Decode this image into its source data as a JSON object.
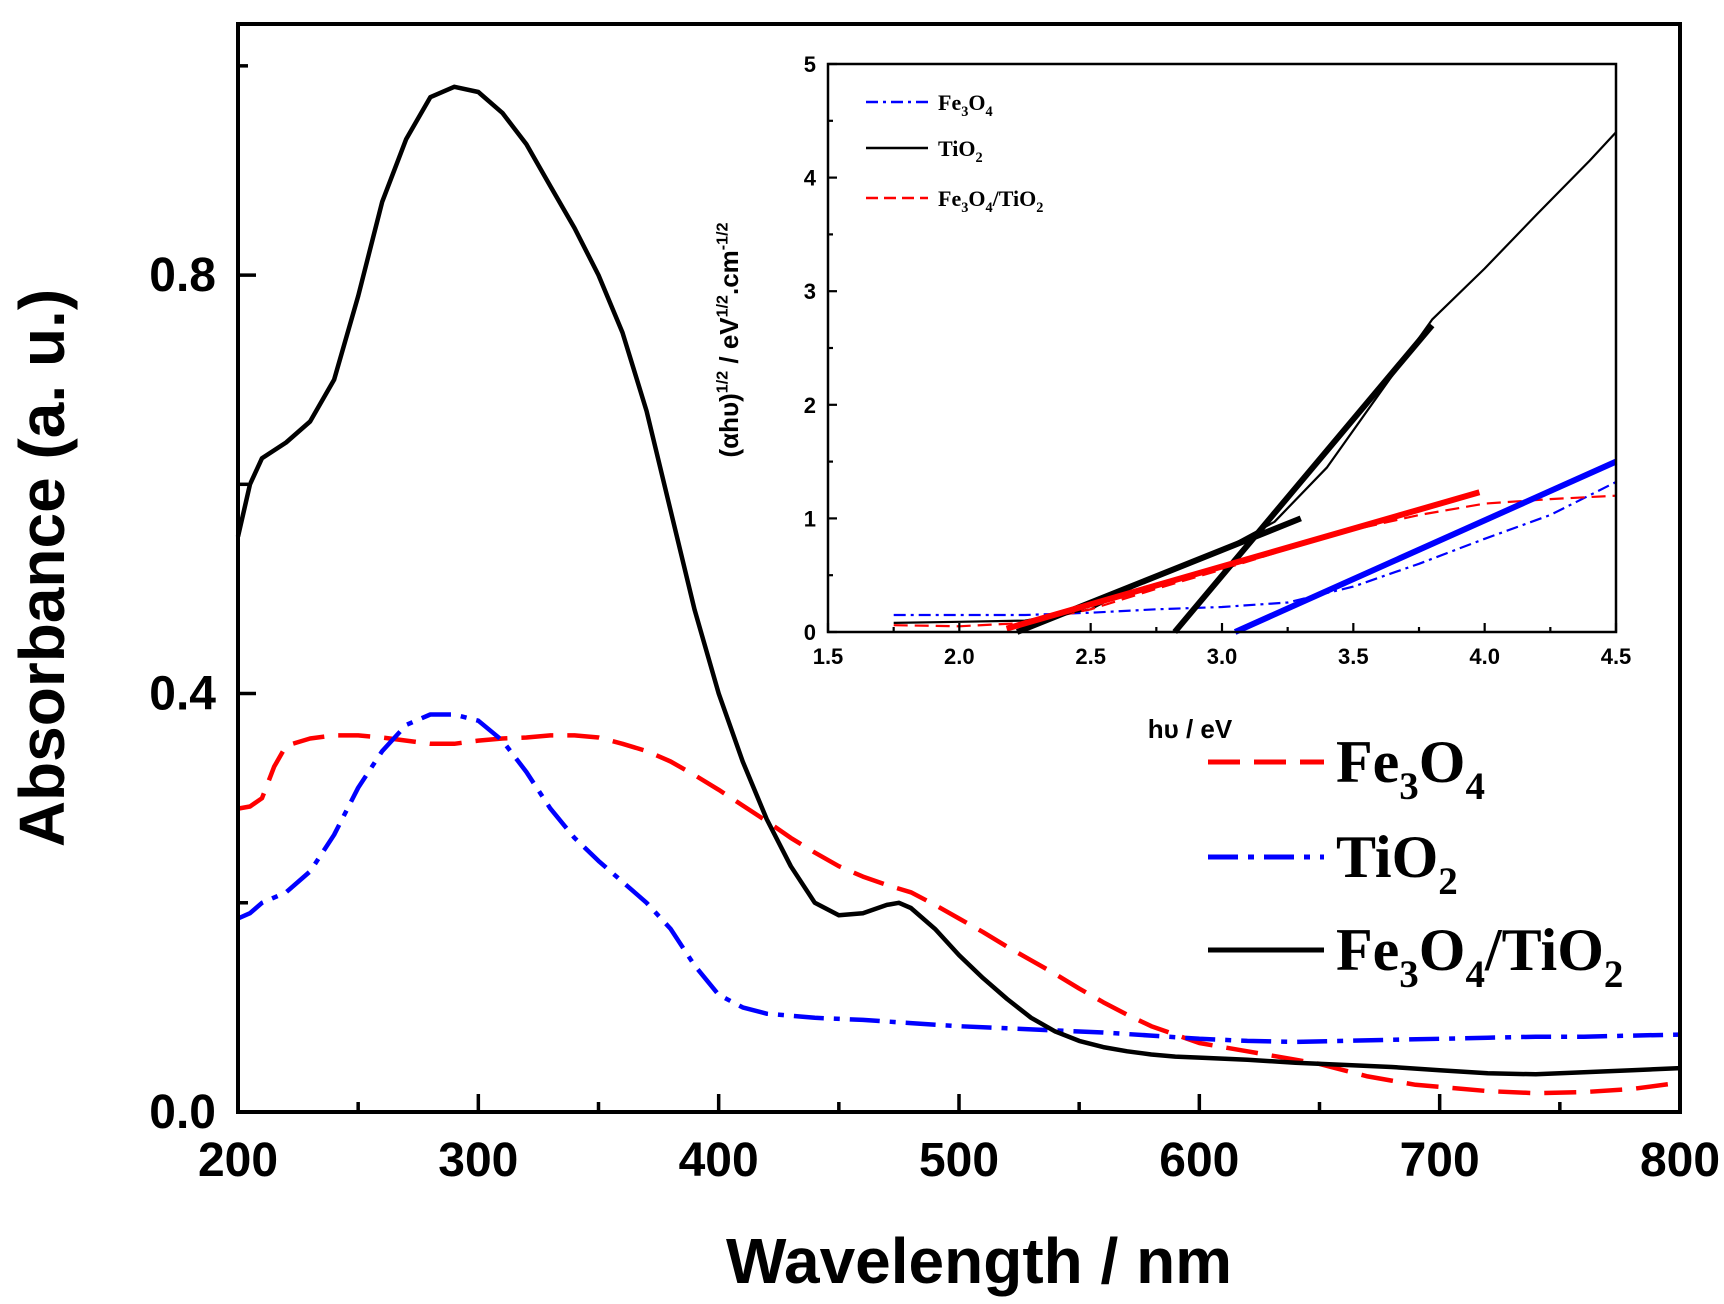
{
  "chart_data": [
    {
      "type": "line",
      "title": "",
      "xlabel": "Wavelength / nm",
      "ylabel": "Absorbance (a. u.)",
      "xlim": [
        200,
        800
      ],
      "ylim": [
        0.0,
        1.04
      ],
      "xticks": [
        200,
        300,
        400,
        500,
        600,
        700,
        800
      ],
      "xtick_labels": [
        "200",
        "300",
        "400",
        "500",
        "600",
        "700",
        "800"
      ],
      "yticks": [
        0.0,
        0.4,
        0.8
      ],
      "ytick_labels": [
        "0.0",
        "0.4",
        "0.8"
      ],
      "grid": false,
      "legend_position": "lower-right",
      "series": [
        {
          "key": "fe3o4",
          "name": "Fe3O4",
          "legend_parts": [
            [
              "Fe",
              "n"
            ],
            [
              "3",
              "sub"
            ],
            [
              "O",
              "n"
            ],
            [
              "4",
              "sub"
            ]
          ],
          "color": "#ff0000",
          "style": "dashed",
          "points": [
            [
              200,
              0.29
            ],
            [
              205,
              0.292
            ],
            [
              210,
              0.3
            ],
            [
              215,
              0.33
            ],
            [
              220,
              0.35
            ],
            [
              230,
              0.357
            ],
            [
              240,
              0.36
            ],
            [
              250,
              0.36
            ],
            [
              260,
              0.358
            ],
            [
              270,
              0.355
            ],
            [
              280,
              0.352
            ],
            [
              290,
              0.352
            ],
            [
              300,
              0.355
            ],
            [
              310,
              0.357
            ],
            [
              320,
              0.358
            ],
            [
              330,
              0.36
            ],
            [
              340,
              0.36
            ],
            [
              350,
              0.358
            ],
            [
              360,
              0.352
            ],
            [
              370,
              0.345
            ],
            [
              380,
              0.335
            ],
            [
              390,
              0.322
            ],
            [
              400,
              0.308
            ],
            [
              410,
              0.293
            ],
            [
              420,
              0.278
            ],
            [
              430,
              0.262
            ],
            [
              440,
              0.248
            ],
            [
              450,
              0.235
            ],
            [
              460,
              0.225
            ],
            [
              470,
              0.217
            ],
            [
              480,
              0.21
            ],
            [
              490,
              0.198
            ],
            [
              500,
              0.185
            ],
            [
              510,
              0.172
            ],
            [
              520,
              0.158
            ],
            [
              530,
              0.145
            ],
            [
              540,
              0.132
            ],
            [
              550,
              0.118
            ],
            [
              560,
              0.105
            ],
            [
              570,
              0.093
            ],
            [
              580,
              0.082
            ],
            [
              590,
              0.074
            ],
            [
              600,
              0.066
            ],
            [
              620,
              0.058
            ],
            [
              640,
              0.05
            ],
            [
              650,
              0.046
            ],
            [
              660,
              0.04
            ],
            [
              670,
              0.034
            ],
            [
              680,
              0.03
            ],
            [
              690,
              0.026
            ],
            [
              700,
              0.024
            ],
            [
              720,
              0.02
            ],
            [
              740,
              0.018
            ],
            [
              760,
              0.019
            ],
            [
              780,
              0.022
            ],
            [
              800,
              0.028
            ]
          ]
        },
        {
          "key": "tio2",
          "name": "TiO2",
          "legend_parts": [
            [
              "TiO",
              "n"
            ],
            [
              "2",
              "sub"
            ]
          ],
          "color": "#0000ff",
          "style": "dashdot",
          "points": [
            [
              200,
              0.185
            ],
            [
              205,
              0.19
            ],
            [
              210,
              0.2
            ],
            [
              220,
              0.21
            ],
            [
              230,
              0.23
            ],
            [
              240,
              0.265
            ],
            [
              250,
              0.31
            ],
            [
              260,
              0.345
            ],
            [
              270,
              0.37
            ],
            [
              280,
              0.38
            ],
            [
              290,
              0.38
            ],
            [
              300,
              0.374
            ],
            [
              310,
              0.355
            ],
            [
              320,
              0.325
            ],
            [
              330,
              0.29
            ],
            [
              340,
              0.262
            ],
            [
              350,
              0.24
            ],
            [
              360,
              0.22
            ],
            [
              370,
              0.2
            ],
            [
              380,
              0.175
            ],
            [
              390,
              0.14
            ],
            [
              400,
              0.112
            ],
            [
              410,
              0.1
            ],
            [
              420,
              0.094
            ],
            [
              440,
              0.09
            ],
            [
              460,
              0.088
            ],
            [
              480,
              0.085
            ],
            [
              500,
              0.082
            ],
            [
              520,
              0.08
            ],
            [
              540,
              0.078
            ],
            [
              560,
              0.076
            ],
            [
              580,
              0.073
            ],
            [
              600,
              0.07
            ],
            [
              620,
              0.068
            ],
            [
              640,
              0.067
            ],
            [
              660,
              0.068
            ],
            [
              680,
              0.069
            ],
            [
              700,
              0.07
            ],
            [
              720,
              0.071
            ],
            [
              740,
              0.072
            ],
            [
              760,
              0.072
            ],
            [
              780,
              0.073
            ],
            [
              800,
              0.074
            ]
          ]
        },
        {
          "key": "fe3o4_tio2",
          "name": "Fe3O4/TiO2",
          "legend_parts": [
            [
              "Fe",
              "n"
            ],
            [
              "3",
              "sub"
            ],
            [
              "O",
              "n"
            ],
            [
              "4",
              "sub"
            ],
            [
              "/TiO",
              "n"
            ],
            [
              "2",
              "sub"
            ]
          ],
          "color": "#000000",
          "style": "solid",
          "points": [
            [
              200,
              0.55
            ],
            [
              205,
              0.6
            ],
            [
              210,
              0.625
            ],
            [
              220,
              0.64
            ],
            [
              230,
              0.66
            ],
            [
              240,
              0.7
            ],
            [
              250,
              0.78
            ],
            [
              260,
              0.87
            ],
            [
              270,
              0.93
            ],
            [
              280,
              0.97
            ],
            [
              290,
              0.98
            ],
            [
              300,
              0.975
            ],
            [
              310,
              0.955
            ],
            [
              320,
              0.925
            ],
            [
              330,
              0.885
            ],
            [
              340,
              0.845
            ],
            [
              350,
              0.8
            ],
            [
              360,
              0.745
            ],
            [
              370,
              0.67
            ],
            [
              380,
              0.575
            ],
            [
              390,
              0.48
            ],
            [
              400,
              0.4
            ],
            [
              410,
              0.335
            ],
            [
              420,
              0.28
            ],
            [
              430,
              0.235
            ],
            [
              440,
              0.2
            ],
            [
              450,
              0.188
            ],
            [
              460,
              0.19
            ],
            [
              470,
              0.198
            ],
            [
              475,
              0.2
            ],
            [
              480,
              0.195
            ],
            [
              490,
              0.175
            ],
            [
              500,
              0.15
            ],
            [
              510,
              0.128
            ],
            [
              520,
              0.108
            ],
            [
              530,
              0.09
            ],
            [
              540,
              0.077
            ],
            [
              550,
              0.068
            ],
            [
              560,
              0.062
            ],
            [
              570,
              0.058
            ],
            [
              580,
              0.055
            ],
            [
              590,
              0.053
            ],
            [
              600,
              0.052
            ],
            [
              620,
              0.05
            ],
            [
              640,
              0.047
            ],
            [
              660,
              0.045
            ],
            [
              680,
              0.043
            ],
            [
              700,
              0.04
            ],
            [
              720,
              0.037
            ],
            [
              740,
              0.036
            ],
            [
              760,
              0.038
            ],
            [
              780,
              0.04
            ],
            [
              800,
              0.042
            ]
          ]
        }
      ]
    },
    {
      "type": "line",
      "title": "",
      "xlabel": "hυ / eV",
      "ylabel": "(αhυ)1/2 / eV1/2.cm-1/2",
      "ylabel_parts": [
        [
          "(αhυ)",
          "n"
        ],
        [
          "1/2",
          "sup"
        ],
        [
          " / eV",
          "n"
        ],
        [
          "1/2",
          "sup"
        ],
        [
          ".cm",
          "n"
        ],
        [
          "-1/2",
          "sup"
        ]
      ],
      "xlim": [
        1.5,
        4.5
      ],
      "ylim": [
        0,
        5
      ],
      "xticks": [
        1.5,
        2.0,
        2.5,
        3.0,
        3.5,
        4.0,
        4.5
      ],
      "xtick_labels": [
        "1.5",
        "2.0",
        "2.5",
        "3.0",
        "3.5",
        "4.0",
        "4.5"
      ],
      "yticks": [
        0,
        1,
        2,
        3,
        4,
        5
      ],
      "ytick_labels": [
        "0",
        "1",
        "2",
        "3",
        "4",
        "5"
      ],
      "grid": false,
      "legend_position": "top-left",
      "series": [
        {
          "key": "inset_fe3o4",
          "name": "Fe3O4",
          "legend_parts": [
            [
              "Fe",
              "n"
            ],
            [
              "3",
              "sub"
            ],
            [
              "O",
              "n"
            ],
            [
              "4",
              "sub"
            ]
          ],
          "color": "#0000ff",
          "style": "dashdot",
          "points": [
            [
              1.75,
              0.15
            ],
            [
              2.0,
              0.15
            ],
            [
              2.25,
              0.15
            ],
            [
              2.5,
              0.17
            ],
            [
              2.75,
              0.2
            ],
            [
              3.0,
              0.22
            ],
            [
              3.25,
              0.26
            ],
            [
              3.5,
              0.4
            ],
            [
              3.75,
              0.6
            ],
            [
              4.0,
              0.82
            ],
            [
              4.25,
              1.03
            ],
            [
              4.5,
              1.32
            ]
          ]
        },
        {
          "key": "inset_tio2",
          "name": "TiO2",
          "legend_parts": [
            [
              "TiO",
              "n"
            ],
            [
              "2",
              "sub"
            ]
          ],
          "color": "#000000",
          "style": "solid",
          "points": [
            [
              1.75,
              0.08
            ],
            [
              2.0,
              0.09
            ],
            [
              2.25,
              0.1
            ],
            [
              2.5,
              0.2
            ],
            [
              2.75,
              0.5
            ],
            [
              3.0,
              0.72
            ],
            [
              3.2,
              0.97
            ],
            [
              3.4,
              1.45
            ],
            [
              3.6,
              2.1
            ],
            [
              3.8,
              2.75
            ],
            [
              4.0,
              3.2
            ],
            [
              4.2,
              3.68
            ],
            [
              4.4,
              4.15
            ],
            [
              4.5,
              4.4
            ]
          ]
        },
        {
          "key": "inset_fe3o4_tio2",
          "name": "Fe3O4/TiO2",
          "legend_parts": [
            [
              "Fe",
              "n"
            ],
            [
              "3",
              "sub"
            ],
            [
              "O",
              "n"
            ],
            [
              "4",
              "sub"
            ],
            [
              "/TiO",
              "n"
            ],
            [
              "2",
              "sub"
            ]
          ],
          "color": "#ff0000",
          "style": "dashed",
          "points": [
            [
              1.75,
              0.06
            ],
            [
              2.0,
              0.05
            ],
            [
              2.25,
              0.08
            ],
            [
              2.5,
              0.2
            ],
            [
              2.75,
              0.38
            ],
            [
              3.0,
              0.55
            ],
            [
              3.25,
              0.73
            ],
            [
              3.5,
              0.9
            ],
            [
              3.75,
              1.03
            ],
            [
              4.0,
              1.13
            ],
            [
              4.25,
              1.17
            ],
            [
              4.5,
              1.2
            ]
          ]
        }
      ],
      "fit_lines": [
        {
          "color": "#000000",
          "from": [
            2.22,
            0.0
          ],
          "to": [
            3.3,
            1.0
          ]
        },
        {
          "color": "#000000",
          "from": [
            2.82,
            0.0
          ],
          "to": [
            3.8,
            2.7
          ]
        },
        {
          "color": "#ff0000",
          "from": [
            2.18,
            0.03
          ],
          "to": [
            3.98,
            1.23
          ]
        },
        {
          "color": "#0000ff",
          "from": [
            3.05,
            0.0
          ],
          "to": [
            4.5,
            1.5
          ]
        }
      ]
    }
  ]
}
